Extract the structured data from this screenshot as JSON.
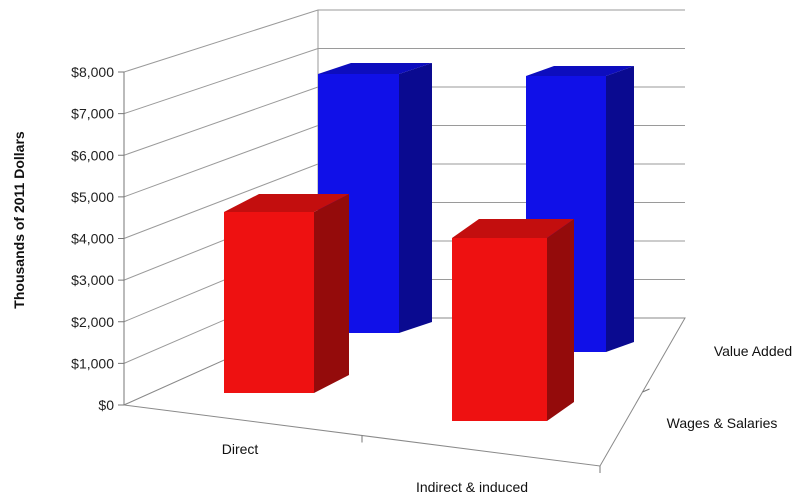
{
  "chart_data": {
    "type": "bar",
    "subtype": "3d-column",
    "ylabel": "Thousands of 2011 Dollars",
    "ylim": [
      0,
      8000
    ],
    "y_ticks": [
      "$0",
      "$1,000",
      "$2,000",
      "$3,000",
      "$4,000",
      "$5,000",
      "$6,000",
      "$7,000",
      "$8,000"
    ],
    "categories": [
      "Direct",
      "Indirect & induced"
    ],
    "series_axis_labels": [
      "Value Added",
      "Wages & Salaries"
    ],
    "series": [
      {
        "name": "Value Added",
        "color": "#1010e8",
        "values": [
          6550,
          6650
        ]
      },
      {
        "name": "Wages & Salaries",
        "color": "#ee1111",
        "values": [
          4450,
          4100
        ]
      }
    ],
    "grid": true
  }
}
